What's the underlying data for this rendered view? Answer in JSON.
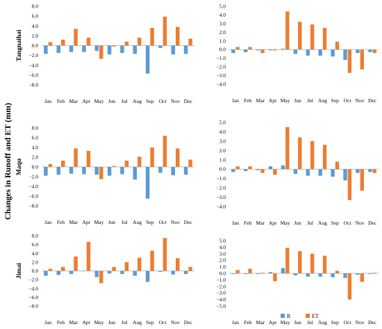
{
  "figure": {
    "ylabel": "Changes in Runoff and ET (mm)",
    "legend": {
      "items": [
        "R",
        "ET"
      ],
      "colors": [
        "#5B9BD5",
        "#ED7D31"
      ]
    }
  },
  "chart_data": [
    {
      "type": "bar",
      "panel": "left",
      "ylabel": "Tangnaihai",
      "categories": [
        "Jan",
        "Feb",
        "Mar",
        "Apr",
        "May",
        "Jun",
        "Jul",
        "Aug",
        "Sep",
        "Oct",
        "Nov",
        "Dec"
      ],
      "ylim": [
        -8,
        8
      ],
      "ticks": [
        8,
        6,
        4,
        2,
        0,
        -2,
        -4,
        -6,
        -8
      ],
      "tick_labels": [
        "8.0",
        "6.0",
        "4.0",
        "2.0",
        "0.0",
        "−2.0",
        "−4.0",
        "−6.0",
        "−8.0"
      ],
      "series": [
        {
          "name": "R",
          "values": [
            -1.7,
            -1.5,
            -1.3,
            -1.3,
            -1.1,
            -1.8,
            -1.5,
            -1.7,
            -5.7,
            -0.5,
            -1.8,
            -1.7
          ]
        },
        {
          "name": "ET",
          "values": [
            0.7,
            1.2,
            3.4,
            1.6,
            -2.7,
            -0.2,
            0.8,
            1.6,
            3.6,
            5.9,
            3.8,
            1.4
          ]
        }
      ]
    },
    {
      "type": "bar",
      "panel": "right",
      "ylabel": "",
      "categories": [
        "Jan",
        "Feb",
        "Mar",
        "Apr",
        "May",
        "Jun",
        "Jul",
        "Aug",
        "Sep",
        "Oct",
        "Nov",
        "Dec"
      ],
      "ylim": [
        -4,
        5
      ],
      "ticks": [
        5,
        4,
        3,
        2,
        1,
        0,
        -1,
        -2,
        -3,
        -4
      ],
      "tick_labels": [
        "5.0",
        "4.0",
        "3.0",
        "2.0",
        "1.0",
        "0.0",
        "−1.0",
        "−2.0",
        "−3.0",
        "−4.0"
      ],
      "series": [
        {
          "name": "R",
          "values": [
            -0.4,
            -0.3,
            -0.1,
            -0.1,
            0.1,
            -0.5,
            -0.7,
            -0.7,
            -0.8,
            -1.2,
            -0.4,
            -0.3
          ]
        },
        {
          "name": "ET",
          "values": [
            0.3,
            0.3,
            -0.4,
            -0.1,
            4.4,
            3.2,
            2.9,
            2.5,
            0.9,
            -2.7,
            -2.3,
            -0.4
          ]
        }
      ]
    },
    {
      "type": "bar",
      "panel": "left",
      "ylabel": "Maqu",
      "categories": [
        "Jan",
        "Feb",
        "Mar",
        "Apr",
        "May",
        "Jun",
        "Jul",
        "Aug",
        "Sep",
        "Oct",
        "Nov",
        "Dec"
      ],
      "ylim": [
        -8,
        8
      ],
      "ticks": [
        8,
        6,
        4,
        2,
        0,
        -2,
        -4,
        -6,
        -8
      ],
      "tick_labels": [
        "8.0",
        "6.0",
        "4.0",
        "2.0",
        "0.0",
        "−2.0",
        "−4.0",
        "−6.0",
        "−8.0"
      ],
      "series": [
        {
          "name": "R",
          "values": [
            -1.8,
            -1.6,
            -1.4,
            -1.5,
            -1.6,
            -1.8,
            -1.5,
            -2.6,
            -6.5,
            -1.2,
            -1.7,
            -1.6
          ]
        },
        {
          "name": "ET",
          "values": [
            0.6,
            1.3,
            3.8,
            3.3,
            -2.5,
            0.2,
            1.3,
            2.1,
            4.0,
            6.4,
            3.8,
            1.5
          ]
        }
      ]
    },
    {
      "type": "bar",
      "panel": "right",
      "ylabel": "",
      "categories": [
        "Jan",
        "Feb",
        "Mar",
        "Apr",
        "May",
        "Jun",
        "Jul",
        "Aug",
        "Sep",
        "Oct",
        "Nov",
        "Dec"
      ],
      "ylim": [
        -4,
        5
      ],
      "ticks": [
        5,
        4,
        3,
        2,
        1,
        0,
        -1,
        -2,
        -3,
        -4
      ],
      "tick_labels": [
        "5.0",
        "4.0",
        "3.0",
        "2.0",
        "1.0",
        "0.0",
        "−1.0",
        "−2.0",
        "−3.0",
        "−4.0"
      ],
      "series": [
        {
          "name": "R",
          "values": [
            -0.3,
            -0.2,
            -0.1,
            0.3,
            0.4,
            -0.5,
            -0.7,
            -0.7,
            -0.8,
            -1.2,
            -0.4,
            -0.3
          ]
        },
        {
          "name": "ET",
          "values": [
            0.3,
            0.3,
            -0.4,
            -0.6,
            4.5,
            3.4,
            3.0,
            2.6,
            0.8,
            -3.3,
            -2.3,
            -0.4
          ]
        }
      ]
    },
    {
      "type": "bar",
      "panel": "left",
      "ylabel": "Jimai",
      "categories": [
        "Jan",
        "Feb",
        "Mar",
        "Apr",
        "May",
        "Jun",
        "Jul",
        "Aug",
        "Sep",
        "Oct",
        "Nov",
        "Dec"
      ],
      "ylim": [
        -8,
        8
      ],
      "ticks": [
        8,
        6,
        4,
        2,
        0,
        -2,
        -4,
        -6,
        -8
      ],
      "tick_labels": [
        "8.0",
        "6.0",
        "4.0",
        "2.0",
        "0.0",
        "−2.0",
        "−4.0",
        "−6.0",
        "−8.0"
      ],
      "series": [
        {
          "name": "R",
          "values": [
            -1.1,
            -0.9,
            -0.7,
            -0.1,
            -1.4,
            -0.6,
            -0.7,
            -1.1,
            -2.5,
            -0.2,
            -0.8,
            -0.7
          ]
        },
        {
          "name": "ET",
          "values": [
            0.5,
            0.9,
            3.3,
            6.6,
            -2.8,
            0.9,
            2.0,
            3.0,
            4.6,
            7.5,
            2.9,
            0.9
          ]
        }
      ]
    },
    {
      "type": "bar",
      "panel": "right",
      "ylabel": "",
      "categories": [
        "Jan",
        "Feb",
        "Mar",
        "Apr",
        "May",
        "Jun",
        "Jul",
        "Aug",
        "Sep",
        "Oct",
        "Nov",
        "Dec"
      ],
      "ylim": [
        -5,
        5
      ],
      "ticks": [
        5,
        4,
        3,
        2,
        1,
        0,
        -1,
        -2,
        -3,
        -4,
        -5
      ],
      "tick_labels": [
        "5.0",
        "4.0",
        "3.0",
        "2.0",
        "1.0",
        "0.0",
        "−1.0",
        "−2.0",
        "−3.0",
        "−4.0",
        "−5.0"
      ],
      "series": [
        {
          "name": "R",
          "values": [
            -0.1,
            -0.1,
            -0.1,
            0.2,
            0.8,
            -0.3,
            -0.5,
            -0.5,
            -0.6,
            -0.7,
            -0.2,
            -0.1
          ]
        },
        {
          "name": "ET",
          "values": [
            0.5,
            0.7,
            0.1,
            -1.2,
            3.9,
            3.4,
            3.0,
            2.7,
            0.4,
            -4.0,
            -1.3,
            0.1
          ]
        }
      ]
    }
  ]
}
